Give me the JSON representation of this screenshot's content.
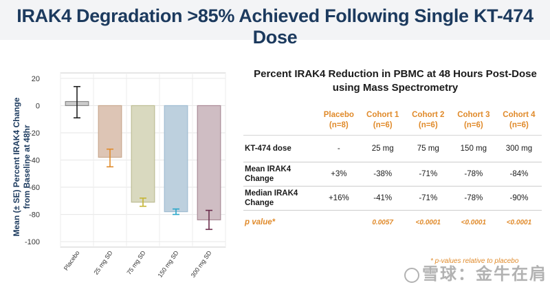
{
  "header": {
    "title": "IRAK4 Degradation >85% Achieved Following Single KT-474 Dose"
  },
  "colors": {
    "title": "#1c3a5e",
    "accent": "#e08a2a"
  },
  "chart_data": {
    "type": "bar",
    "ylabel": "Mean (± SE) Percent IRAK4 Change from Baseline at 48hr",
    "ylim": [
      -100,
      20
    ],
    "yticks": [
      20,
      0,
      -20,
      -40,
      -60,
      -80,
      -100
    ],
    "grid": true,
    "categories": [
      "Placebo",
      "25 mg SD",
      "75 mg SD",
      "150 mg SD",
      "300 mg SD"
    ],
    "values": [
      3,
      -38,
      -71,
      -78,
      -84
    ],
    "error_low": [
      -9,
      -45,
      -74,
      -80,
      -91
    ],
    "error_high": [
      14,
      -32,
      -68,
      -76,
      -77
    ],
    "bar_fills": [
      "#cccccc",
      "#ddc5b5",
      "#d9d9bf",
      "#bdd0de",
      "#cfbdc3"
    ],
    "bar_strokes": [
      "#888888",
      "#c9a98f",
      "#bdbd93",
      "#9fbcd1",
      "#a98a96"
    ],
    "error_colors": [
      "#222222",
      "#e08a2a",
      "#c5b432",
      "#2ba7c9",
      "#6b2d4c"
    ]
  },
  "table": {
    "title": "Percent IRAK4 Reduction in PBMC at 48 Hours Post-Dose using Mass Spectrometry",
    "headers": [
      {
        "name": "",
        "n": ""
      },
      {
        "name": "Placebo",
        "n": "(n=8)"
      },
      {
        "name": "Cohort 1",
        "n": "(n=6)"
      },
      {
        "name": "Cohort 2",
        "n": "(n=6)"
      },
      {
        "name": "Cohort 3",
        "n": "(n=6)"
      },
      {
        "name": "Cohort 4",
        "n": "(n=6)"
      }
    ],
    "rows": [
      {
        "label": "KT-474 dose",
        "values": [
          "-",
          "25 mg",
          "75 mg",
          "150 mg",
          "300 mg"
        ]
      },
      {
        "label": "Mean IRAK4 Change",
        "values": [
          "+3%",
          "-38%",
          "-71%",
          "-78%",
          "-84%"
        ]
      },
      {
        "label": "Median IRAK4 Change",
        "values": [
          "+16%",
          "-41%",
          "-71%",
          "-78%",
          "-90%"
        ]
      },
      {
        "label": "p value*",
        "values": [
          "",
          "0.0057",
          "<0.0001",
          "<0.0001",
          "<0.0001"
        ]
      }
    ],
    "footnote": "* p-values relative to placebo"
  },
  "watermark": {
    "text": "雪球：金牛在肩"
  }
}
